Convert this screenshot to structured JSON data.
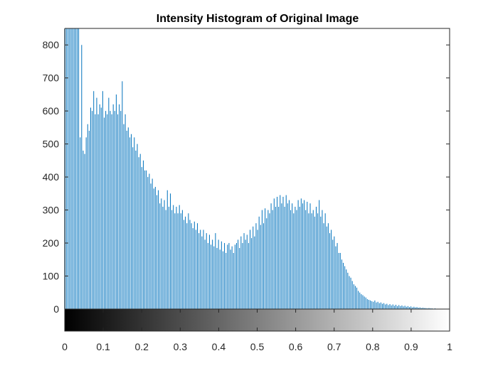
{
  "chart_data": {
    "type": "bar",
    "title": "Intensity Histogram of Original Image",
    "xlabel": "",
    "ylabel": "",
    "xlim": [
      0,
      1
    ],
    "ylim": [
      0,
      850
    ],
    "x_ticks": [
      "0",
      "0.1",
      "0.2",
      "0.3",
      "0.4",
      "0.5",
      "0.6",
      "0.7",
      "0.8",
      "0.9",
      "1"
    ],
    "y_ticks": [
      "0",
      "100",
      "200",
      "300",
      "400",
      "500",
      "600",
      "700",
      "800"
    ],
    "grid": false,
    "colorbar": {
      "orientation": "horizontal",
      "colormap": "gray",
      "range": [
        0,
        1
      ]
    },
    "bar_color": "#0072bd",
    "bins": 256,
    "bin_width": 0.003921568627,
    "values": [
      850,
      850,
      850,
      850,
      850,
      850,
      850,
      850,
      850,
      850,
      520,
      800,
      480,
      470,
      520,
      560,
      540,
      610,
      600,
      660,
      590,
      640,
      590,
      620,
      610,
      660,
      580,
      600,
      590,
      640,
      600,
      590,
      620,
      600,
      650,
      590,
      620,
      600,
      690,
      560,
      590,
      540,
      550,
      520,
      530,
      490,
      520,
      480,
      500,
      460,
      470,
      430,
      450,
      420,
      420,
      400,
      410,
      380,
      395,
      365,
      370,
      345,
      360,
      320,
      335,
      310,
      330,
      300,
      360,
      310,
      350,
      300,
      315,
      290,
      310,
      290,
      315,
      290,
      300,
      270,
      280,
      260,
      290,
      270,
      260,
      245,
      265,
      240,
      260,
      230,
      240,
      220,
      240,
      210,
      230,
      200,
      225,
      195,
      210,
      190,
      230,
      185,
      210,
      180,
      205,
      175,
      200,
      170,
      195,
      200,
      180,
      190,
      170,
      195,
      200,
      210,
      185,
      220,
      200,
      230,
      210,
      225,
      200,
      240,
      215,
      250,
      220,
      260,
      240,
      280,
      255,
      300,
      260,
      305,
      275,
      300,
      290,
      320,
      300,
      335,
      310,
      340,
      310,
      345,
      320,
      340,
      310,
      345,
      320,
      330,
      300,
      320,
      290,
      310,
      300,
      330,
      310,
      335,
      320,
      330,
      300,
      325,
      290,
      320,
      290,
      300,
      280,
      310,
      290,
      330,
      280,
      300,
      260,
      290,
      250,
      260,
      230,
      240,
      210,
      220,
      190,
      200,
      170,
      170,
      150,
      140,
      130,
      120,
      110,
      100,
      95,
      85,
      75,
      70,
      65,
      55,
      50,
      45,
      42,
      38,
      35,
      30,
      28,
      26,
      24,
      22,
      26,
      20,
      22,
      18,
      20,
      16,
      18,
      14,
      16,
      12,
      15,
      11,
      14,
      10,
      13,
      9,
      12,
      9,
      11,
      8,
      10,
      7,
      9,
      6,
      8,
      5,
      7,
      5,
      6,
      4,
      5,
      3,
      4,
      3,
      3,
      2,
      3,
      2,
      2,
      1,
      2,
      1,
      1,
      1,
      1,
      0,
      1,
      0,
      0,
      0
    ]
  }
}
